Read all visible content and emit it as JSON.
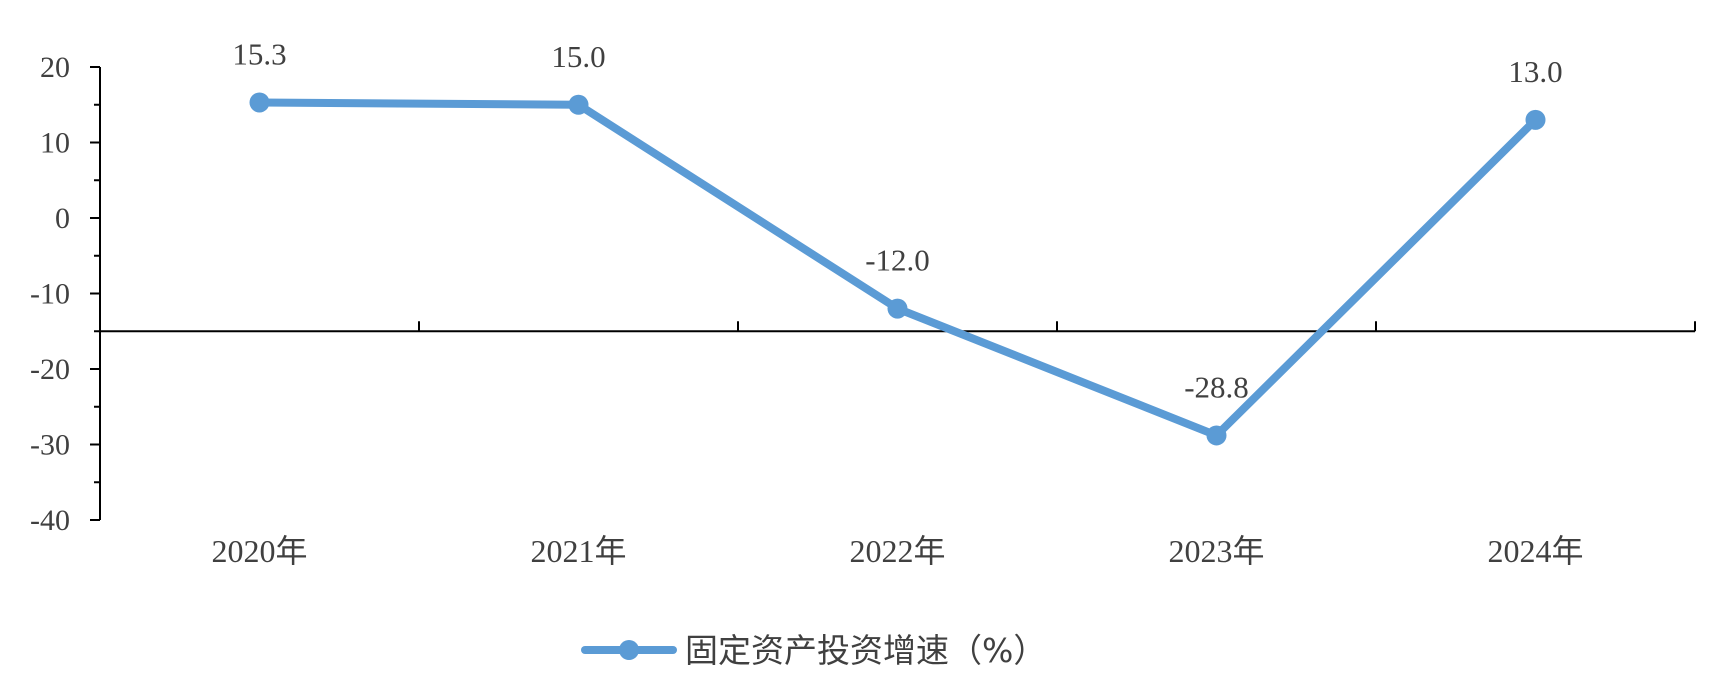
{
  "chart_data": {
    "type": "line",
    "categories": [
      "2020年",
      "2021年",
      "2022年",
      "2023年",
      "2024年"
    ],
    "series": [
      {
        "name": "固定资产投资增速（%）",
        "values": [
          15.3,
          15.0,
          -12.0,
          -28.8,
          13.0
        ],
        "data_labels": [
          "15.3",
          "15.0",
          "-12.0",
          "-28.8",
          "13.0"
        ],
        "color": "#5B9BD5"
      }
    ],
    "ylim": [
      -40,
      20
    ],
    "yticks": [
      20,
      10,
      0,
      -10,
      -20,
      -30,
      -40
    ],
    "ytick_labels": [
      "20",
      "10",
      "0",
      "-10",
      "-20",
      "-30",
      "-40"
    ],
    "category_axis_crosses_at": -15,
    "xlabel": "",
    "ylabel": "",
    "grid": false,
    "legend_position": "bottom"
  }
}
